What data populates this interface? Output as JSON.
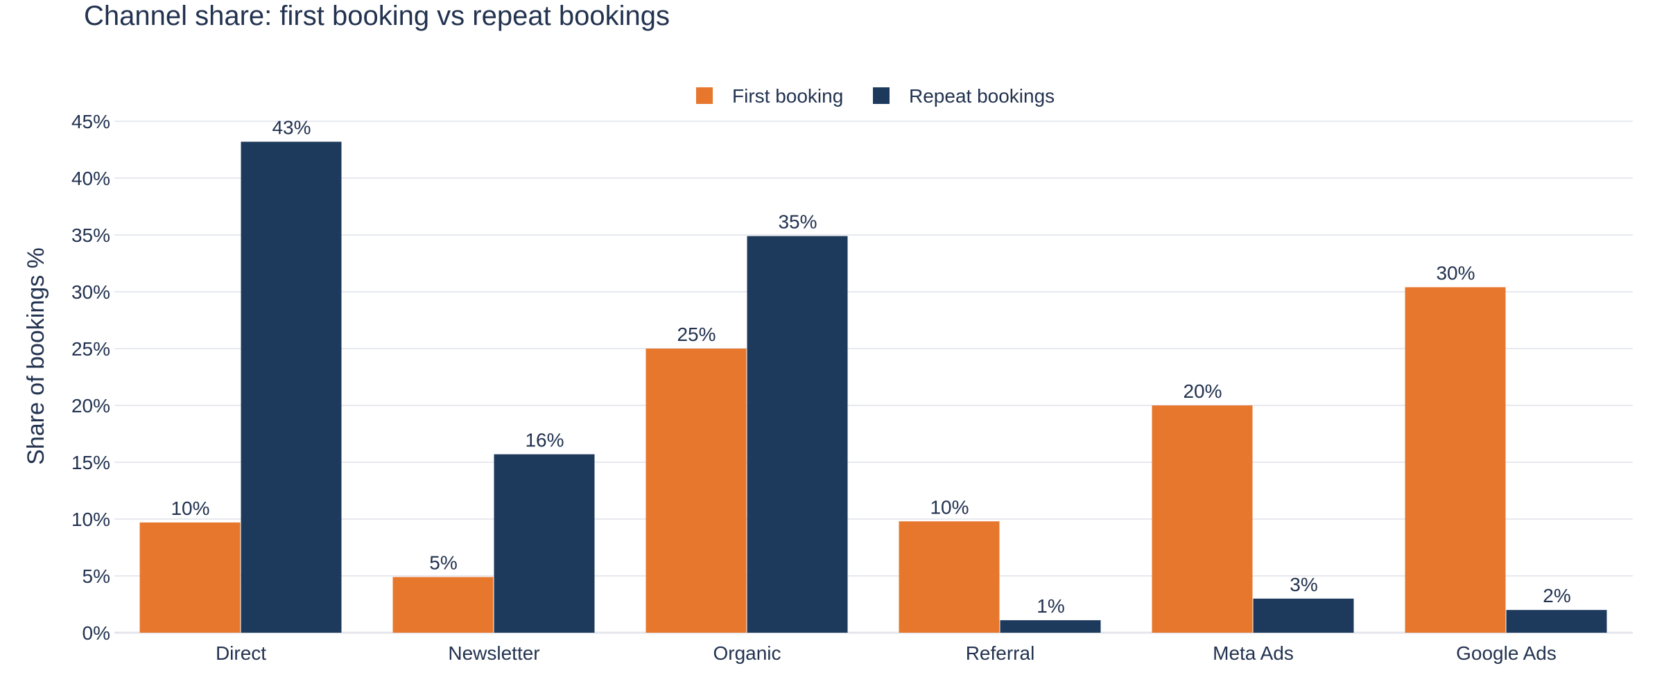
{
  "chart_data": {
    "type": "bar",
    "title": "Channel share: first booking vs repeat bookings",
    "xlabel": "",
    "ylabel": "Share of bookings %",
    "categories": [
      "Direct",
      "Newsletter",
      "Organic",
      "Referral",
      "Meta Ads",
      "Google Ads"
    ],
    "series": [
      {
        "name": "First booking",
        "color": "#e8772e",
        "values": [
          9.7,
          4.9,
          25.0,
          9.8,
          20.0,
          30.4
        ],
        "labels": [
          "10%",
          "5%",
          "25%",
          "10%",
          "20%",
          "30%"
        ]
      },
      {
        "name": "Repeat bookings",
        "color": "#1d3a5c",
        "values": [
          43.2,
          15.7,
          34.9,
          1.1,
          3.0,
          2.0
        ],
        "labels": [
          "43%",
          "16%",
          "35%",
          "1%",
          "3%",
          "2%"
        ]
      }
    ],
    "ylim": [
      0,
      45
    ],
    "yticks": [
      0,
      5,
      10,
      15,
      20,
      25,
      30,
      35,
      40,
      45
    ],
    "ytick_labels": [
      "0%",
      "5%",
      "10%",
      "15%",
      "20%",
      "25%",
      "30%",
      "35%",
      "40%",
      "45%"
    ],
    "grid": true,
    "legend_position": "top-center"
  }
}
